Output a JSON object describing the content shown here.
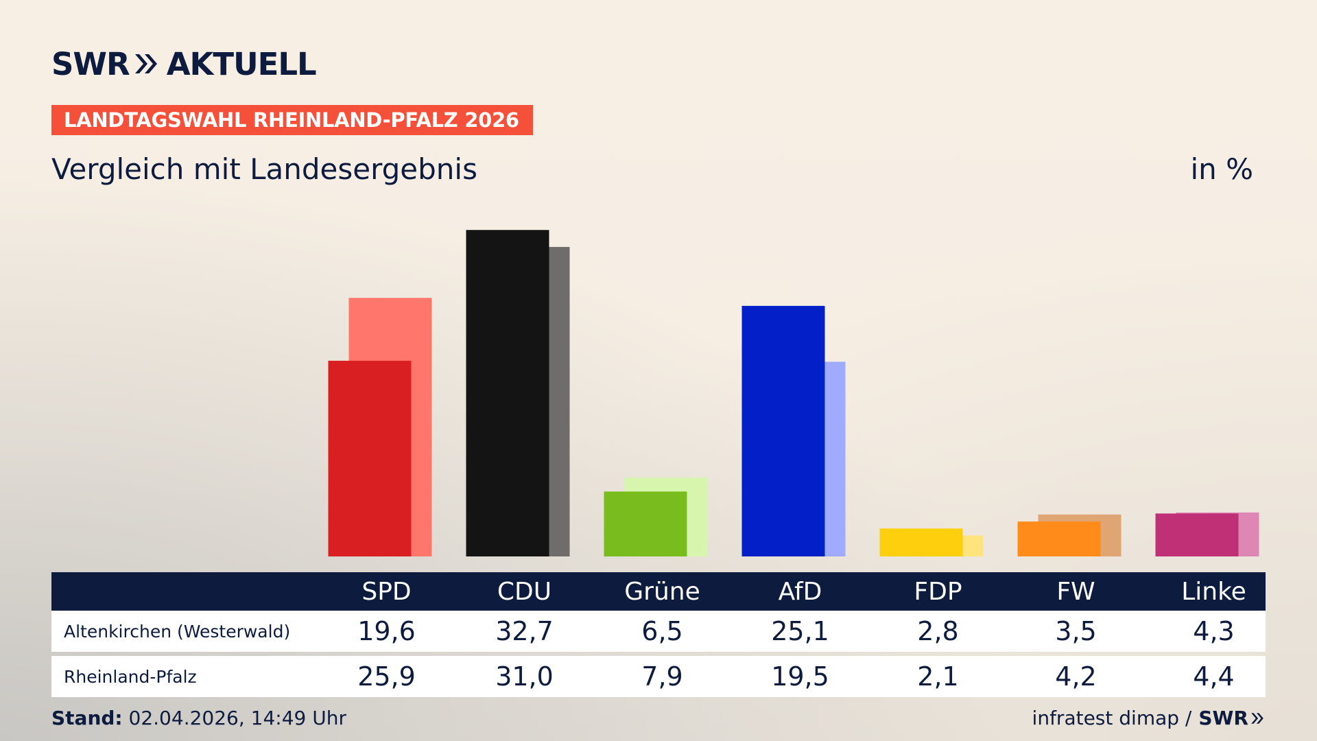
{
  "brand": {
    "swr": "SWR",
    "aktuell": "AKTUELL"
  },
  "badge": "LANDTAGSWAHL RHEINLAND-PFALZ 2026",
  "subtitle": "Vergleich mit Landesergebnis",
  "unit_label": "in %",
  "colors": {
    "navy": "#0d1b3e",
    "badge": "#f5503a"
  },
  "chart_data": {
    "type": "bar",
    "title": "Vergleich mit Landesergebnis",
    "ylabel": "in %",
    "categories": [
      "SPD",
      "CDU",
      "Grüne",
      "AfD",
      "FDP",
      "FW",
      "Linke"
    ],
    "series": [
      {
        "name": "Altenkirchen (Westerwald)",
        "values": [
          19.6,
          32.7,
          6.5,
          25.1,
          2.8,
          3.5,
          4.3
        ],
        "colors": [
          "#d91f21",
          "#141414",
          "#79bc1e",
          "#0320c8",
          "#fdcf0c",
          "#ff8c1a",
          "#c03077"
        ]
      },
      {
        "name": "Rheinland-Pfalz",
        "values": [
          25.9,
          31.0,
          7.9,
          19.5,
          2.1,
          4.2,
          4.4
        ],
        "colors": [
          "#ff766c",
          "#6f6d6b",
          "#d7f5ad",
          "#a0aaff",
          "#ffe47d",
          "#dfa572",
          "#de86b4"
        ]
      }
    ],
    "grid": false,
    "legend": "table-below"
  },
  "table": {
    "headers": [
      "SPD",
      "CDU",
      "Grüne",
      "AfD",
      "FDP",
      "FW",
      "Linke"
    ],
    "rows": [
      {
        "label": "Altenkirchen (Westerwald)",
        "values": [
          "19,6",
          "32,7",
          "6,5",
          "25,1",
          "2,8",
          "3,5",
          "4,3"
        ]
      },
      {
        "label": "Rheinland-Pfalz",
        "values": [
          "25,9",
          "31,0",
          "7,9",
          "19,5",
          "2,1",
          "4,2",
          "4,4"
        ]
      }
    ]
  },
  "footer": {
    "stand_label": "Stand:",
    "stand_value": "02.04.2026, 14:49 Uhr",
    "source": "infratest dimap /",
    "source_brand": "SWR"
  }
}
